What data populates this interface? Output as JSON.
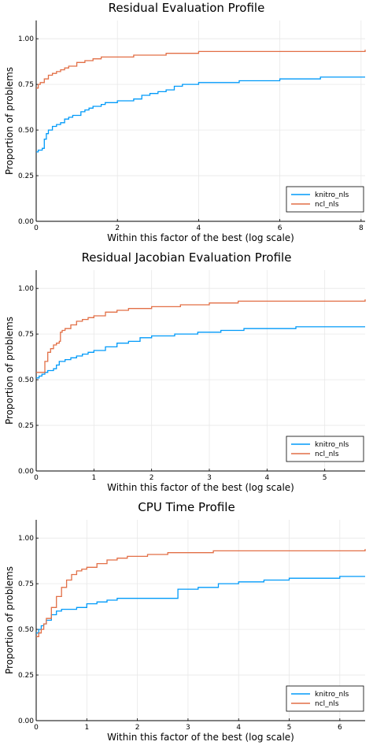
{
  "chart_data": [
    {
      "type": "line",
      "title": "Residual Evaluation Profile",
      "xlabel": "Within this factor of the best (log scale)",
      "ylabel": "Proportion of problems",
      "xlim": [
        0,
        8.1
      ],
      "ylim": [
        0,
        1.1
      ],
      "xticks": [
        0,
        2,
        4,
        6,
        8
      ],
      "xtick_labels": [
        "0",
        "2",
        "4",
        "6",
        "8"
      ],
      "yticks": [
        0,
        0.25,
        0.5,
        0.75,
        1.0
      ],
      "ytick_labels": [
        "0.00",
        "0.25",
        "0.50",
        "0.75",
        "1.00"
      ],
      "grid": true,
      "legend_position": "bottom-right",
      "series": [
        {
          "name": "knitro_nls",
          "color": "#009af9",
          "x": [
            0,
            0.05,
            0.1,
            0.15,
            0.2,
            0.25,
            0.3,
            0.4,
            0.5,
            0.6,
            0.7,
            0.8,
            0.9,
            1.0,
            1.1,
            1.2,
            1.3,
            1.4,
            1.5,
            1.6,
            1.7,
            1.8,
            2.0,
            2.2,
            2.4,
            2.6,
            2.8,
            3.0,
            3.2,
            3.4,
            3.6,
            4.0,
            4.5,
            5.0,
            5.5,
            6.0,
            6.5,
            7.0,
            7.5,
            8.1
          ],
          "y": [
            0.38,
            0.39,
            0.39,
            0.4,
            0.45,
            0.48,
            0.5,
            0.52,
            0.53,
            0.54,
            0.56,
            0.57,
            0.58,
            0.58,
            0.6,
            0.61,
            0.62,
            0.63,
            0.63,
            0.64,
            0.65,
            0.65,
            0.66,
            0.66,
            0.67,
            0.69,
            0.7,
            0.71,
            0.72,
            0.74,
            0.75,
            0.76,
            0.76,
            0.77,
            0.77,
            0.78,
            0.78,
            0.79,
            0.79,
            0.79
          ]
        },
        {
          "name": "ncl_nls",
          "color": "#e26f46",
          "x": [
            0,
            0.05,
            0.1,
            0.2,
            0.3,
            0.4,
            0.5,
            0.6,
            0.7,
            0.8,
            1.0,
            1.2,
            1.4,
            1.6,
            1.8,
            2.0,
            2.4,
            2.8,
            3.2,
            3.6,
            4.0,
            4.5,
            5.0,
            6.0,
            7.0,
            8.1
          ],
          "y": [
            0.73,
            0.75,
            0.76,
            0.78,
            0.8,
            0.81,
            0.82,
            0.83,
            0.84,
            0.85,
            0.87,
            0.88,
            0.89,
            0.9,
            0.9,
            0.9,
            0.91,
            0.91,
            0.92,
            0.92,
            0.93,
            0.93,
            0.93,
            0.93,
            0.93,
            0.94
          ]
        }
      ]
    },
    {
      "type": "line",
      "title": "Residual Jacobian Evaluation Profile",
      "xlabel": "Within this factor of the best (log scale)",
      "ylabel": "Proportion of problems",
      "xlim": [
        0,
        5.7
      ],
      "ylim": [
        0,
        1.1
      ],
      "xticks": [
        0,
        1,
        2,
        3,
        4,
        5
      ],
      "xtick_labels": [
        "0",
        "1",
        "2",
        "3",
        "4",
        "5"
      ],
      "yticks": [
        0,
        0.25,
        0.5,
        0.75,
        1.0
      ],
      "ytick_labels": [
        "0.00",
        "0.25",
        "0.50",
        "0.75",
        "1.00"
      ],
      "grid": true,
      "legend_position": "bottom-right",
      "series": [
        {
          "name": "knitro_nls",
          "color": "#009af9",
          "x": [
            0,
            0.05,
            0.1,
            0.15,
            0.2,
            0.3,
            0.35,
            0.4,
            0.5,
            0.6,
            0.7,
            0.8,
            0.9,
            1.0,
            1.2,
            1.4,
            1.6,
            1.8,
            2.0,
            2.4,
            2.8,
            3.2,
            3.6,
            4.0,
            4.5,
            5.0,
            5.7
          ],
          "y": [
            0.51,
            0.52,
            0.53,
            0.54,
            0.55,
            0.56,
            0.58,
            0.6,
            0.61,
            0.62,
            0.63,
            0.64,
            0.65,
            0.66,
            0.68,
            0.7,
            0.71,
            0.73,
            0.74,
            0.75,
            0.76,
            0.77,
            0.78,
            0.78,
            0.79,
            0.79,
            0.79
          ]
        },
        {
          "name": "ncl_nls",
          "color": "#e26f46",
          "x": [
            0,
            0.1,
            0.15,
            0.2,
            0.25,
            0.3,
            0.35,
            0.4,
            0.42,
            0.45,
            0.5,
            0.6,
            0.7,
            0.8,
            0.9,
            1.0,
            1.2,
            1.4,
            1.6,
            1.8,
            2.0,
            2.5,
            3.0,
            3.5,
            4.0,
            4.5,
            5.0,
            5.7
          ],
          "y": [
            0.54,
            0.54,
            0.6,
            0.65,
            0.67,
            0.69,
            0.7,
            0.71,
            0.76,
            0.77,
            0.78,
            0.8,
            0.82,
            0.83,
            0.84,
            0.85,
            0.87,
            0.88,
            0.89,
            0.89,
            0.9,
            0.91,
            0.92,
            0.93,
            0.93,
            0.93,
            0.93,
            0.94
          ]
        }
      ]
    },
    {
      "type": "line",
      "title": "CPU Time Profile",
      "xlabel": "Within this factor of the best (log scale)",
      "ylabel": "Proportion of problems",
      "xlim": [
        0,
        6.5
      ],
      "ylim": [
        0,
        1.1
      ],
      "xticks": [
        0,
        1,
        2,
        3,
        4,
        5,
        6
      ],
      "xtick_labels": [
        "0",
        "1",
        "2",
        "3",
        "4",
        "5",
        "6"
      ],
      "yticks": [
        0,
        0.25,
        0.5,
        0.75,
        1.0
      ],
      "ytick_labels": [
        "0.00",
        "0.25",
        "0.50",
        "0.75",
        "1.00"
      ],
      "grid": true,
      "legend_position": "bottom-right",
      "series": [
        {
          "name": "knitro_nls",
          "color": "#009af9",
          "x": [
            0,
            0.05,
            0.1,
            0.15,
            0.2,
            0.3,
            0.4,
            0.5,
            0.6,
            0.8,
            1.0,
            1.2,
            1.4,
            1.6,
            1.8,
            2.0,
            2.4,
            2.8,
            3.2,
            3.6,
            4.0,
            4.5,
            5.0,
            5.5,
            6.0,
            6.5
          ],
          "y": [
            0.48,
            0.5,
            0.52,
            0.53,
            0.55,
            0.58,
            0.6,
            0.61,
            0.61,
            0.62,
            0.64,
            0.65,
            0.66,
            0.67,
            0.67,
            0.67,
            0.67,
            0.72,
            0.73,
            0.75,
            0.76,
            0.77,
            0.78,
            0.78,
            0.79,
            0.79
          ]
        },
        {
          "name": "ncl_nls",
          "color": "#e26f46",
          "x": [
            0,
            0.05,
            0.1,
            0.15,
            0.2,
            0.3,
            0.4,
            0.5,
            0.6,
            0.7,
            0.8,
            0.9,
            1.0,
            1.2,
            1.4,
            1.6,
            1.8,
            2.0,
            2.2,
            2.6,
            3.0,
            3.5,
            4.0,
            4.5,
            5.0,
            5.5,
            6.5
          ],
          "y": [
            0.46,
            0.48,
            0.5,
            0.53,
            0.56,
            0.62,
            0.68,
            0.73,
            0.77,
            0.8,
            0.82,
            0.83,
            0.84,
            0.86,
            0.88,
            0.89,
            0.9,
            0.9,
            0.91,
            0.92,
            0.92,
            0.93,
            0.93,
            0.93,
            0.93,
            0.93,
            0.94
          ]
        }
      ]
    }
  ]
}
